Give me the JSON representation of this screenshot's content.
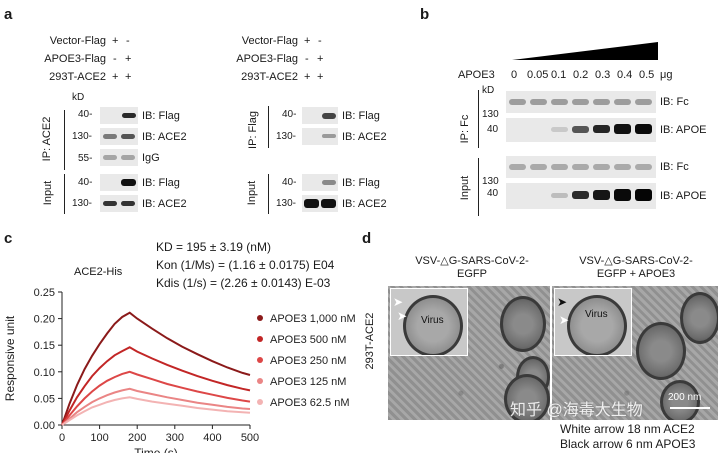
{
  "panel_a": {
    "label": "a",
    "rows_left": [
      "Vector-Flag",
      "APOE3-Flag",
      "293T-ACE2"
    ],
    "signs_left": [
      [
        "+",
        "-"
      ],
      [
        "-",
        "+"
      ],
      [
        "+",
        "+"
      ]
    ],
    "rows_right": [
      "Vector-Flag",
      "APOE3-Flag",
      "293T-ACE2"
    ],
    "signs_right": [
      [
        "+",
        "-"
      ],
      [
        "-",
        "+"
      ],
      [
        "+",
        "+"
      ]
    ],
    "kd": "kD",
    "left_group_ip": "IP: ACE2",
    "left_group_input": "Input",
    "right_group_ip": "IP: Flag",
    "right_group_input": "Input",
    "left_ip_markers": [
      "40-",
      "130-",
      "55-"
    ],
    "left_ip_labels": [
      "IB: Flag",
      "IB: ACE2",
      "IgG"
    ],
    "left_input_markers": [
      "40-",
      "130-"
    ],
    "left_input_labels": [
      "IB: Flag",
      "IB: ACE2"
    ],
    "right_ip_markers": [
      "40-",
      "130-"
    ],
    "right_ip_labels": [
      "IB: Flag",
      "IB: ACE2"
    ],
    "right_input_markers": [
      "40-",
      "130-"
    ],
    "right_input_labels": [
      "IB: Flag",
      "IB: ACE2"
    ]
  },
  "panel_b": {
    "label": "b",
    "apoe3_label": "APOE3",
    "doses": [
      "0",
      "0.05",
      "0.1",
      "0.2",
      "0.3",
      "0.4",
      "0.5"
    ],
    "unit": "μg",
    "kd": "kD",
    "ip_label": "IP: Fc",
    "input_label": "Input",
    "markers": [
      "130",
      "40",
      "130",
      "40"
    ],
    "row_labels": [
      "IB: Fc",
      "IB: APOE",
      "IB: Fc",
      "IB: APOE"
    ]
  },
  "panel_c": {
    "label": "c",
    "kinetics": [
      "KD = 195 ± 3.19 (nM)",
      "Kon (1/Ms) = (1.16 ± 0.0175) E04",
      "Kdis (1/s) = (2.26 ± 0.0143) E-03"
    ],
    "ligand": "ACE2-His",
    "ylabel": "Responsive unit",
    "xlabel": "Time (s)"
  },
  "chart_data": {
    "type": "line",
    "title": "",
    "xlabel": "Time (s)",
    "ylabel": "Responsive unit",
    "xlim": [
      0,
      500
    ],
    "ylim": [
      0,
      0.25
    ],
    "xticks": [
      0,
      100,
      200,
      300,
      400,
      500
    ],
    "yticks": [
      0.0,
      0.05,
      0.1,
      0.15,
      0.2,
      0.25
    ],
    "xticklabels": [
      "0",
      "100",
      "200",
      "300",
      "400",
      "500"
    ],
    "yticklabels": [
      "0.00",
      "0.05",
      "0.10",
      "0.15",
      "0.20",
      "0.25"
    ],
    "association_end": 180,
    "series": [
      {
        "name": "APOE3 1,000 nM",
        "color": "#8b1a1a",
        "x": [
          0,
          20,
          40,
          60,
          80,
          100,
          120,
          140,
          160,
          180,
          200,
          240,
          280,
          320,
          360,
          400,
          440,
          480,
          500
        ],
        "y": [
          0.0,
          0.04,
          0.075,
          0.105,
          0.13,
          0.152,
          0.172,
          0.19,
          0.203,
          0.211,
          0.2,
          0.181,
          0.163,
          0.147,
          0.133,
          0.12,
          0.108,
          0.098,
          0.094
        ]
      },
      {
        "name": "APOE3 500 nM",
        "color": "#c22626",
        "x": [
          0,
          20,
          40,
          60,
          80,
          100,
          120,
          140,
          160,
          180,
          200,
          240,
          280,
          320,
          360,
          400,
          440,
          480,
          500
        ],
        "y": [
          0.0,
          0.027,
          0.052,
          0.073,
          0.092,
          0.107,
          0.12,
          0.131,
          0.139,
          0.146,
          0.138,
          0.125,
          0.113,
          0.102,
          0.092,
          0.083,
          0.075,
          0.068,
          0.065
        ]
      },
      {
        "name": "APOE3 250 nM",
        "color": "#dd4747",
        "x": [
          0,
          20,
          40,
          60,
          80,
          100,
          120,
          140,
          160,
          180,
          200,
          240,
          280,
          320,
          360,
          400,
          440,
          480,
          500
        ],
        "y": [
          0.0,
          0.018,
          0.035,
          0.05,
          0.063,
          0.074,
          0.083,
          0.09,
          0.096,
          0.1,
          0.095,
          0.086,
          0.077,
          0.07,
          0.063,
          0.057,
          0.051,
          0.046,
          0.044
        ]
      },
      {
        "name": "APOE3 125 nM",
        "color": "#ea8585",
        "x": [
          0,
          20,
          40,
          60,
          80,
          100,
          120,
          140,
          160,
          180,
          200,
          240,
          280,
          320,
          360,
          400,
          440,
          480,
          500
        ],
        "y": [
          0.0,
          0.012,
          0.024,
          0.034,
          0.043,
          0.05,
          0.056,
          0.061,
          0.065,
          0.068,
          0.064,
          0.058,
          0.052,
          0.047,
          0.042,
          0.038,
          0.034,
          0.031,
          0.03
        ]
      },
      {
        "name": "APOE3 62.5 nM",
        "color": "#f3b3b3",
        "x": [
          0,
          20,
          40,
          60,
          80,
          100,
          120,
          140,
          160,
          180,
          200,
          240,
          280,
          320,
          360,
          400,
          440,
          480,
          500
        ],
        "y": [
          0.0,
          0.009,
          0.018,
          0.026,
          0.033,
          0.038,
          0.043,
          0.047,
          0.05,
          0.052,
          0.049,
          0.044,
          0.04,
          0.036,
          0.032,
          0.029,
          0.026,
          0.024,
          0.023
        ]
      }
    ],
    "legend": "right"
  },
  "panel_d": {
    "label": "d",
    "left_title_1": "VSV-△G-SARS-CoV-2-",
    "left_title_2": "EGFP",
    "right_title_1": "VSV-△G-SARS-CoV-2-",
    "right_title_2": "EGFP + APOE3",
    "cell_label": "293T-ACE2",
    "virus_label": "Virus",
    "scale_bar": "200 nm",
    "caption_1": "White arrow 18 nm ACE2",
    "caption_2": "Black arrow 6 nm APOE3",
    "watermark": "知乎 @海毒大生物"
  },
  "colors": {
    "band_dark": "#151515",
    "band_mid": "#6d6d6d",
    "band_light": "#c2c2c2",
    "blot_bg": "#e9e9e9",
    "dose_wedge": "#000000"
  }
}
